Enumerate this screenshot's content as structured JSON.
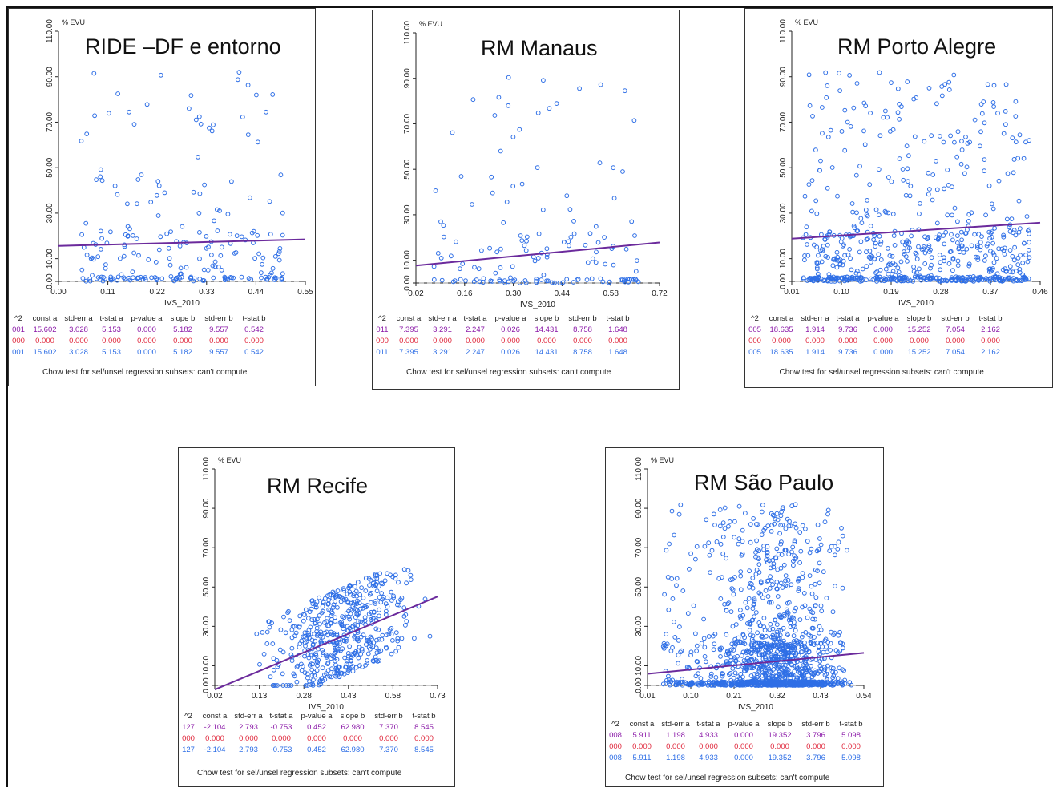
{
  "colors": {
    "point": "#2f6fe6",
    "regression": "#6b2a9c",
    "zero_line": "#999999",
    "row_purple": "#8b1aa8",
    "row_red": "#e0283c",
    "row_blue": "#2f6fe6"
  },
  "table_headers": [
    "^2",
    "const a",
    "std-err a",
    "t-stat a",
    "p-value a",
    "slope b",
    "std-err b",
    "t-stat b"
  ],
  "chow_text": "Chow test for sel/unsel regression subsets: can't compute",
  "y_label": "% EVU",
  "x_label": "IVS_2010",
  "panels": [
    {
      "title": "RIDE –DF e entorno",
      "y_ticks": [
        "0.00",
        "10.00",
        "30.00",
        "50.00",
        "70.00",
        "90.00",
        "110.00"
      ],
      "x_ticks": [
        "0.00",
        "0.11",
        "0.22",
        "0.33",
        "0.44",
        "0.55"
      ],
      "rows": [
        [
          "001",
          "15.602",
          "3.028",
          "5.153",
          "0.000",
          "5.182",
          "9.557",
          "0.542"
        ],
        [
          "000",
          "0.000",
          "0.000",
          "0.000",
          "0.000",
          "0.000",
          "0.000",
          "0.000"
        ],
        [
          "001",
          "15.602",
          "3.028",
          "5.153",
          "0.000",
          "5.182",
          "9.557",
          "0.542"
        ]
      ],
      "chart_data": {
        "type": "scatter",
        "xlabel": "IVS_2010",
        "ylabel": "% EVU",
        "xlim": [
          0.0,
          0.55
        ],
        "ylim": [
          0,
          110
        ],
        "regression": {
          "intercept": 15.602,
          "slope": 5.182
        },
        "x_range": [
          0.05,
          0.5
        ],
        "n_points": 230
      }
    },
    {
      "title": "RM Manaus",
      "y_ticks": [
        "0.00",
        "10.00",
        "30.00",
        "50.00",
        "70.00",
        "90.00",
        "110.00"
      ],
      "x_ticks": [
        "0.02",
        "0.16",
        "0.30",
        "0.44",
        "0.58",
        "0.72"
      ],
      "rows": [
        [
          "011",
          "7.395",
          "3.291",
          "2.247",
          "0.026",
          "14.431",
          "8.758",
          "1.648"
        ],
        [
          "000",
          "0.000",
          "0.000",
          "0.000",
          "0.000",
          "0.000",
          "0.000",
          "0.000"
        ],
        [
          "011",
          "7.395",
          "3.291",
          "2.247",
          "0.026",
          "14.431",
          "8.758",
          "1.648"
        ]
      ],
      "chart_data": {
        "type": "scatter",
        "xlabel": "IVS_2010",
        "ylabel": "% EVU",
        "xlim": [
          0.02,
          0.72
        ],
        "ylim": [
          0,
          110
        ],
        "regression": {
          "intercept": 7.395,
          "slope": 14.431
        },
        "x_range": [
          0.07,
          0.66
        ],
        "n_points": 150
      }
    },
    {
      "title": "RM Porto Alegre",
      "y_ticks": [
        "0.00",
        "10.00",
        "30.00",
        "50.00",
        "70.00",
        "90.00",
        "110.00"
      ],
      "x_ticks": [
        "0.01",
        "0.10",
        "0.19",
        "0.28",
        "0.37",
        "0.46"
      ],
      "rows": [
        [
          "005",
          "18.635",
          "1.914",
          "9.736",
          "0.000",
          "15.252",
          "7.054",
          "2.162"
        ],
        [
          "000",
          "0.000",
          "0.000",
          "0.000",
          "0.000",
          "0.000",
          "0.000",
          "0.000"
        ],
        [
          "005",
          "18.635",
          "1.914",
          "9.736",
          "0.000",
          "15.252",
          "7.054",
          "2.162"
        ]
      ],
      "chart_data": {
        "type": "scatter",
        "xlabel": "IVS_2010",
        "ylabel": "% EVU",
        "xlim": [
          0.01,
          0.47
        ],
        "ylim": [
          0,
          110
        ],
        "regression": {
          "intercept": 18.635,
          "slope": 15.252
        },
        "x_range": [
          0.03,
          0.45
        ],
        "n_points": 700
      }
    },
    {
      "title": "RM Recife",
      "y_ticks": [
        "0.00",
        "10.00",
        "30.00",
        "50.00",
        "70.00",
        "90.00",
        "110.00"
      ],
      "x_ticks": [
        "0.02",
        "0.13",
        "0.28",
        "0.43",
        "0.58",
        "0.73"
      ],
      "rows": [
        [
          "127",
          "-2.104",
          "2.793",
          "-0.753",
          "0.452",
          "62.980",
          "7.370",
          "8.545"
        ],
        [
          "000",
          "0.000",
          "0.000",
          "0.000",
          "0.000",
          "0.000",
          "0.000",
          "0.000"
        ],
        [
          "127",
          "-2.104",
          "2.793",
          "-0.753",
          "0.452",
          "62.980",
          "7.370",
          "8.545"
        ]
      ],
      "chart_data": {
        "type": "scatter",
        "xlabel": "IVS_2010",
        "ylabel": "% EVU",
        "xlim": [
          0.0,
          0.75
        ],
        "ylim": [
          0,
          110
        ],
        "regression": {
          "intercept": -2.104,
          "slope": 62.98
        },
        "x_range": [
          0.07,
          0.68
        ],
        "n_points": 520
      }
    },
    {
      "title": "RM São Paulo",
      "y_ticks": [
        "0.00",
        "10.00",
        "30.00",
        "50.00",
        "70.00",
        "90.00",
        "110.00"
      ],
      "x_ticks": [
        "0.01",
        "0.10",
        "0.21",
        "0.32",
        "0.43",
        "0.54"
      ],
      "rows": [
        [
          "008",
          "5.911",
          "1.198",
          "4.933",
          "0.000",
          "19.352",
          "3.796",
          "5.098"
        ],
        [
          "000",
          "0.000",
          "0.000",
          "0.000",
          "0.000",
          "0.000",
          "0.000",
          "0.000"
        ],
        [
          "008",
          "5.911",
          "1.198",
          "4.933",
          "0.000",
          "19.352",
          "3.796",
          "5.098"
        ]
      ],
      "chart_data": {
        "type": "scatter",
        "xlabel": "IVS_2010",
        "ylabel": "% EVU",
        "xlim": [
          0.0,
          0.55
        ],
        "ylim": [
          0,
          110
        ],
        "regression": {
          "intercept": 5.911,
          "slope": 19.352
        },
        "x_range": [
          0.04,
          0.5
        ],
        "n_points": 1400
      }
    }
  ]
}
